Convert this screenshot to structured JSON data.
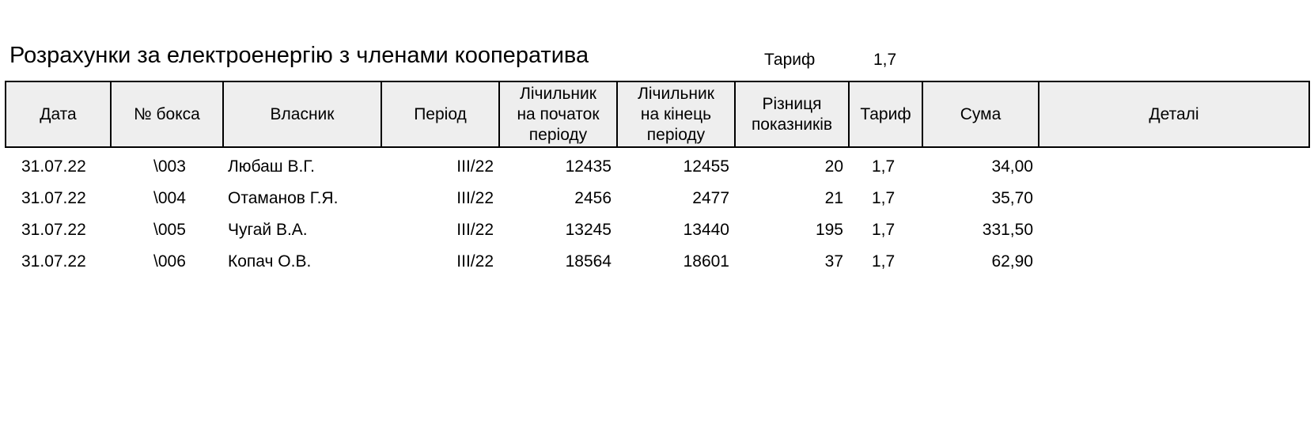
{
  "title": "Розрахунки за електроенергію з членами кооператива",
  "tariff": {
    "label": "Тариф",
    "value": "1,7"
  },
  "table": {
    "headers": {
      "date": "Дата",
      "box": "№ бокса",
      "owner": "Власник",
      "period": "Період",
      "start": "Лічильник\nна початок\nперіоду",
      "end": "Лічильник\nна кінець\nперіоду",
      "diff": "Різниця\nпоказників",
      "tariff": "Тариф",
      "sum": "Сума",
      "details": "Деталі"
    },
    "rows": [
      {
        "date": "31.07.22",
        "box": "\\003",
        "owner": "Любаш В.Г.",
        "period": "III/22",
        "start": "12435",
        "end": "12455",
        "diff": "20",
        "tariff": "1,7",
        "sum": "34,00",
        "details": ""
      },
      {
        "date": "31.07.22",
        "box": "\\004",
        "owner": "Отаманов Г.Я.",
        "period": "III/22",
        "start": "2456",
        "end": "2477",
        "diff": "21",
        "tariff": "1,7",
        "sum": "35,70",
        "details": ""
      },
      {
        "date": "31.07.22",
        "box": "\\005",
        "owner": "Чугай В.А.",
        "period": "III/22",
        "start": "13245",
        "end": "13440",
        "diff": "195",
        "tariff": "1,7",
        "sum": "331,50",
        "details": ""
      },
      {
        "date": "31.07.22",
        "box": "\\006",
        "owner": "Копач О.В.",
        "period": "III/22",
        "start": "18564",
        "end": "18601",
        "diff": "37",
        "tariff": "1,7",
        "sum": "62,90",
        "details": ""
      }
    ]
  }
}
